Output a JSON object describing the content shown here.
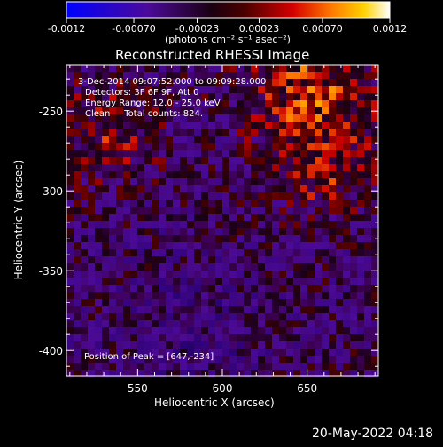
{
  "colorbar": {
    "tick_labels": [
      "-0.0012",
      "-0.00070",
      "-0.00023",
      "0.00023",
      "0.00070",
      "0.0012"
    ],
    "tick_values": [
      -0.0012,
      -0.0007,
      -0.00023,
      0.00023,
      0.0007,
      0.0012
    ],
    "range": [
      -0.0012,
      0.0012
    ],
    "unit_label": "(photons cm⁻² s⁻¹ asec⁻²)"
  },
  "image": {
    "title": "Reconstructed RHESSI Image",
    "xlabel": "Heliocentric X (arcsec)",
    "ylabel": "Heliocentric Y (arcsec)",
    "x_range": [
      508,
      692
    ],
    "y_range": [
      -416,
      -221
    ],
    "x_ticks": [
      550,
      600,
      650
    ],
    "y_ticks": [
      -250,
      -300,
      -350,
      -400
    ],
    "info": {
      "time_range": "3-Dec-2014 09:07:52.000 to 09:09:28.000",
      "detectors": "Detectors: 3F 6F 9F, Att 0",
      "energy": "Energy Range: 12.0 - 25.0 keV",
      "clean": "Clean     Total counts: 824."
    },
    "peak": "Position of Peak = [647,-234]"
  },
  "footer": {
    "timestamp": "20-May-2022 04:18"
  }
}
